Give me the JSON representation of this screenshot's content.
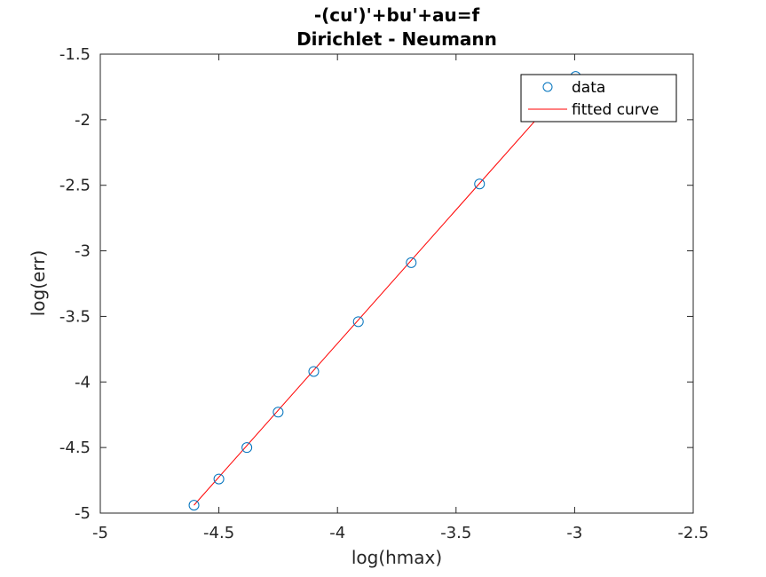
{
  "chart_data": {
    "type": "scatter",
    "title": "-(cu')'+bu'+au=f",
    "subtitle": "Dirichlet - Neumann",
    "xlabel": "log(hmax)",
    "ylabel": "log(err)",
    "xlim": [
      -5,
      -2.5
    ],
    "ylim": [
      -5,
      -1.5
    ],
    "xticks": [
      -5,
      -4.5,
      -4,
      -3.5,
      -3,
      -2.5
    ],
    "xtick_labels": [
      "-5",
      "-4.5",
      "-4",
      "-3.5",
      "-3",
      "-2.5"
    ],
    "yticks": [
      -1.5,
      -2,
      -2.5,
      -3,
      -3.5,
      -4,
      -4.5,
      -5
    ],
    "ytick_labels": [
      "-1.5",
      "-2",
      "-2.5",
      "-3",
      "-3.5",
      "-4",
      "-4.5",
      "-5"
    ],
    "grid": false,
    "legend_position": "top-right",
    "series": [
      {
        "name": "data",
        "kind": "marker",
        "marker": "circle",
        "color": "#0072BD",
        "x": [
          -4.605,
          -4.5,
          -4.382,
          -4.25,
          -4.1,
          -3.912,
          -3.689,
          -3.401,
          -2.996
        ],
        "y": [
          -4.94,
          -4.74,
          -4.5,
          -4.23,
          -3.92,
          -3.54,
          -3.09,
          -2.49,
          -1.67
        ]
      },
      {
        "name": "fitted curve",
        "kind": "line",
        "color": "#FF0000",
        "x": [
          -4.605,
          -2.996
        ],
        "y": [
          -4.94,
          -1.66
        ]
      }
    ]
  }
}
